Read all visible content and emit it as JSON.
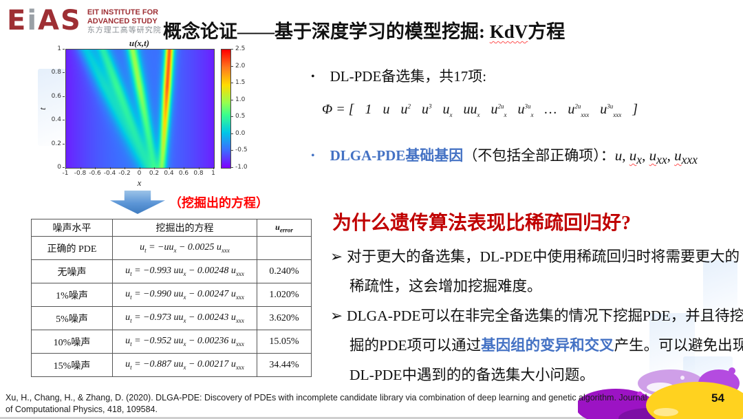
{
  "slide": {
    "logo": {
      "mark_e": "E",
      "mark_i": "i",
      "mark_as": "AS",
      "line1": "EIT INSTITUTE FOR",
      "line2": "ADVANCED STUDY",
      "line3": "东方理工高等研究院"
    },
    "title": {
      "pre": "概念论证——基于深度学习的模型挖掘: ",
      "highlight": "KdV",
      "post": "方程"
    }
  },
  "chart_data": {
    "type": "heatmap",
    "title": "u(x,t)",
    "xlabel": "x",
    "ylabel": "t",
    "x_range": [
      -1,
      1
    ],
    "t_range": [
      0,
      1
    ],
    "value_range": [
      -1.0,
      2.5
    ],
    "colormap": "rainbow",
    "x_tick_labels": [
      "-1",
      "-0.8",
      "-0.6",
      "-0.4",
      "-0.2",
      "0",
      "0.2",
      "0.4",
      "0.6",
      "0.8",
      "1"
    ],
    "t_tick_labels": [
      "0",
      "0.2",
      "0.4",
      "0.6",
      "0.8",
      "1"
    ],
    "colorbar_tick_labels": [
      "2.5",
      "2.0",
      "1.5",
      "1.0",
      "0.5",
      "0.0",
      "-0.5",
      "-1.0"
    ],
    "model": {
      "description": "KdV multi-soliton field: u = background + ramp(t) * sum A*sech^2((x-x0-v*t)/w)",
      "background": {
        "base": -0.45,
        "x2_coeff": -0.4
      },
      "amp_ramp": {
        "min": 0.45,
        "rate": 0.8
      },
      "solitons": [
        {
          "A": 2.6,
          "x0": 0.3,
          "v": 0.1,
          "w": 0.055
        },
        {
          "A": 1.4,
          "x0": 0.2,
          "v": -0.3,
          "w": 0.07
        },
        {
          "A": 0.9,
          "x0": 0.12,
          "v": -0.62,
          "w": 0.09
        },
        {
          "A": 0.7,
          "x0": 0.05,
          "v": -0.78,
          "w": 0.11
        }
      ]
    }
  },
  "arrow_label": "（挖掘出的方程）",
  "table": {
    "headers": [
      "噪声水平",
      "挖掘出的方程",
      "u_error"
    ],
    "rows": [
      {
        "noise": "正确的 PDE",
        "equation": "u_t = −uu_x − 0.0025 u_xxx",
        "error": ""
      },
      {
        "noise": "无噪声",
        "equation": "u_t = −0.993 uu_x − 0.00248 u_xxx",
        "error": "0.240%"
      },
      {
        "noise": "1%噪声",
        "equation": "u_t = −0.990 uu_x − 0.00247 u_xxx",
        "error": "1.020%"
      },
      {
        "noise": "5%噪声",
        "equation": "u_t = −0.973 uu_x − 0.00243 u_xxx",
        "error": "3.620%"
      },
      {
        "noise": "10%噪声",
        "equation": "u_t = −0.952 uu_x − 0.00236 u_xxx",
        "error": "15.05%"
      },
      {
        "noise": "15%噪声",
        "equation": "u_t = −0.887 uu_x − 0.00217 u_xxx",
        "error": "34.44%"
      }
    ]
  },
  "right_panel": {
    "bullet1": "DL-PDE备选集，共17项:",
    "phi": {
      "prefix": "Φ = [",
      "tokens": [
        "1",
        "u",
        "u^2",
        "u^3",
        "u_x",
        "uu_x",
        "u^2u_x",
        "u^3u_x",
        "…",
        "u^2u_xxx",
        "u^3u_xxx"
      ],
      "suffix": "]"
    },
    "bullet2": {
      "blue": "DLGA-PDE基础基因",
      "paren": "（不包括全部正确项）：",
      "terms": [
        {
          "t": "u",
          "wavy": false
        },
        {
          "t": "u_x",
          "wavy": true
        },
        {
          "t": "u_xx",
          "wavy": true
        },
        {
          "t": "u_xxx",
          "wavy": true
        }
      ]
    },
    "question": "为什么遗传算法表现比稀疏回归好?",
    "marker": "➢",
    "point1": "对于更大的备选集，DL-PDE中使用稀疏回归时将需要更大的稀疏性，这会增加挖掘难度。",
    "point2": {
      "pre": "DLGA-PDE可以在非完全备选集的情况下挖掘PDE，并且待挖掘的PDE项可以通过",
      "blue": "基因组的变异和交叉",
      "post": "产生。可以避免出现DL-PDE中遇到的的备选集大小问题。"
    }
  },
  "footer": {
    "citation_line1": "Xu, H., Chang, H., & Zhang, D. (2020). DLGA-PDE: Discovery of PDEs with incomplete candidate library via combination of deep learning and genetic algorithm. Journal",
    "citation_line2": "of Computational Physics, 418, 109584.",
    "page": "54"
  }
}
